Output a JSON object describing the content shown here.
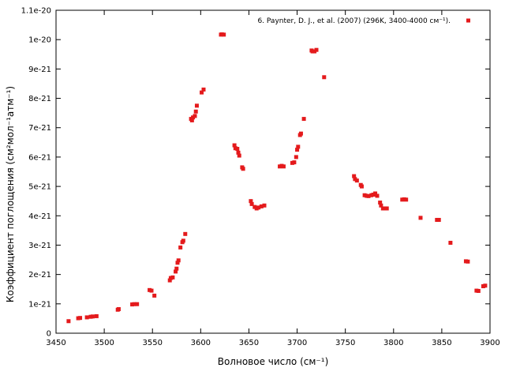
{
  "chart_data": {
    "type": "scatter",
    "xlabel": "Волновое число (см⁻¹)",
    "ylabel": "Коэффициент поглощения (см²мол⁻¹атм⁻¹)",
    "xlim": [
      3450,
      3900
    ],
    "ylim": [
      0,
      1.1e-20
    ],
    "grid": false,
    "legend_position": "top-right",
    "x_ticks": [
      "3450",
      "3500",
      "3550",
      "3600",
      "3650",
      "3700",
      "3750",
      "3800",
      "3850",
      "3900"
    ],
    "y_ticks": [
      "0",
      "1e-21",
      "2e-21",
      "3e-21",
      "4e-21",
      "5e-21",
      "6e-21",
      "7e-21",
      "8e-21",
      "9e-21",
      "1e-20",
      "1.1e-20"
    ],
    "series": [
      {
        "name": "6.  Paynter, D. J., et al. (2007) (296K, 3400-4000 см⁻¹).",
        "color": "#e41a1c",
        "points": [
          [
            3463,
            4.1e-22
          ],
          [
            3473,
            5.1e-22
          ],
          [
            3475,
            5.2e-22
          ],
          [
            3482,
            5.4e-22
          ],
          [
            3486,
            5.6e-22
          ],
          [
            3488,
            5.7e-22
          ],
          [
            3492,
            5.8e-22
          ],
          [
            3514,
            8e-22
          ],
          [
            3515,
            8.2e-22
          ],
          [
            3529,
            9.8e-22
          ],
          [
            3531,
            9.9e-22
          ],
          [
            3534,
            9.9e-22
          ],
          [
            3547,
            1.47e-21
          ],
          [
            3549,
            1.45e-21
          ],
          [
            3552,
            1.28e-21
          ],
          [
            3568,
            1.8e-21
          ],
          [
            3569,
            1.88e-21
          ],
          [
            3571,
            1.9e-21
          ],
          [
            3574,
            2.1e-21
          ],
          [
            3575,
            2.2e-21
          ],
          [
            3576,
            2.4e-21
          ],
          [
            3577,
            2.48e-21
          ],
          [
            3579,
            2.92e-21
          ],
          [
            3581,
            3.1e-21
          ],
          [
            3582,
            3.15e-21
          ],
          [
            3584,
            3.38e-21
          ],
          [
            3590,
            7.3e-21
          ],
          [
            3591,
            7.25e-21
          ],
          [
            3592,
            7.35e-21
          ],
          [
            3594,
            7.4e-21
          ],
          [
            3595,
            7.55e-21
          ],
          [
            3596,
            7.75e-21
          ],
          [
            3601,
            8.2e-21
          ],
          [
            3603,
            8.3e-21
          ],
          [
            3621,
            1.017e-20
          ],
          [
            3622,
            1.018e-20
          ],
          [
            3624,
            1.017e-20
          ],
          [
            3635,
            6.4e-21
          ],
          [
            3636,
            6.3e-21
          ],
          [
            3638,
            6.28e-21
          ],
          [
            3639,
            6.15e-21
          ],
          [
            3640,
            6.05e-21
          ],
          [
            3643,
            5.65e-21
          ],
          [
            3644,
            5.6e-21
          ],
          [
            3652,
            4.5e-21
          ],
          [
            3653,
            4.4e-21
          ],
          [
            3656,
            4.3e-21
          ],
          [
            3658,
            4.25e-21
          ],
          [
            3660,
            4.28e-21
          ],
          [
            3663,
            4.32e-21
          ],
          [
            3666,
            4.35e-21
          ],
          [
            3682,
            5.68e-21
          ],
          [
            3684,
            5.7e-21
          ],
          [
            3686,
            5.68e-21
          ],
          [
            3695,
            5.8e-21
          ],
          [
            3697,
            5.82e-21
          ],
          [
            3699,
            6e-21
          ],
          [
            3700,
            6.25e-21
          ],
          [
            3701,
            6.35e-21
          ],
          [
            3703,
            6.75e-21
          ],
          [
            3704,
            6.8e-21
          ],
          [
            3707,
            7.3e-21
          ],
          [
            3715,
            9.63e-21
          ],
          [
            3716,
            9.6e-21
          ],
          [
            3718,
            9.6e-21
          ],
          [
            3720,
            9.65e-21
          ],
          [
            3728,
            8.72e-21
          ],
          [
            3759,
            5.35e-21
          ],
          [
            3760,
            5.25e-21
          ],
          [
            3762,
            5.2e-21
          ],
          [
            3766,
            5.05e-21
          ],
          [
            3767,
            5e-21
          ],
          [
            3770,
            4.7e-21
          ],
          [
            3772,
            4.68e-21
          ],
          [
            3774,
            4.67e-21
          ],
          [
            3777,
            4.7e-21
          ],
          [
            3779,
            4.72e-21
          ],
          [
            3781,
            4.76e-21
          ],
          [
            3783,
            4.68e-21
          ],
          [
            3786,
            4.45e-21
          ],
          [
            3787,
            4.35e-21
          ],
          [
            3789,
            4.25e-21
          ],
          [
            3791,
            4.25e-21
          ],
          [
            3793,
            4.25e-21
          ],
          [
            3809,
            4.55e-21
          ],
          [
            3811,
            4.56e-21
          ],
          [
            3813,
            4.55e-21
          ],
          [
            3828,
            3.93e-21
          ],
          [
            3845,
            3.86e-21
          ],
          [
            3847,
            3.86e-21
          ],
          [
            3859,
            3.08e-21
          ],
          [
            3875,
            2.45e-21
          ],
          [
            3877,
            2.44e-21
          ],
          [
            3886,
            1.45e-21
          ],
          [
            3888,
            1.44e-21
          ],
          [
            3893,
            1.6e-21
          ],
          [
            3895,
            1.62e-21
          ]
        ]
      }
    ]
  }
}
